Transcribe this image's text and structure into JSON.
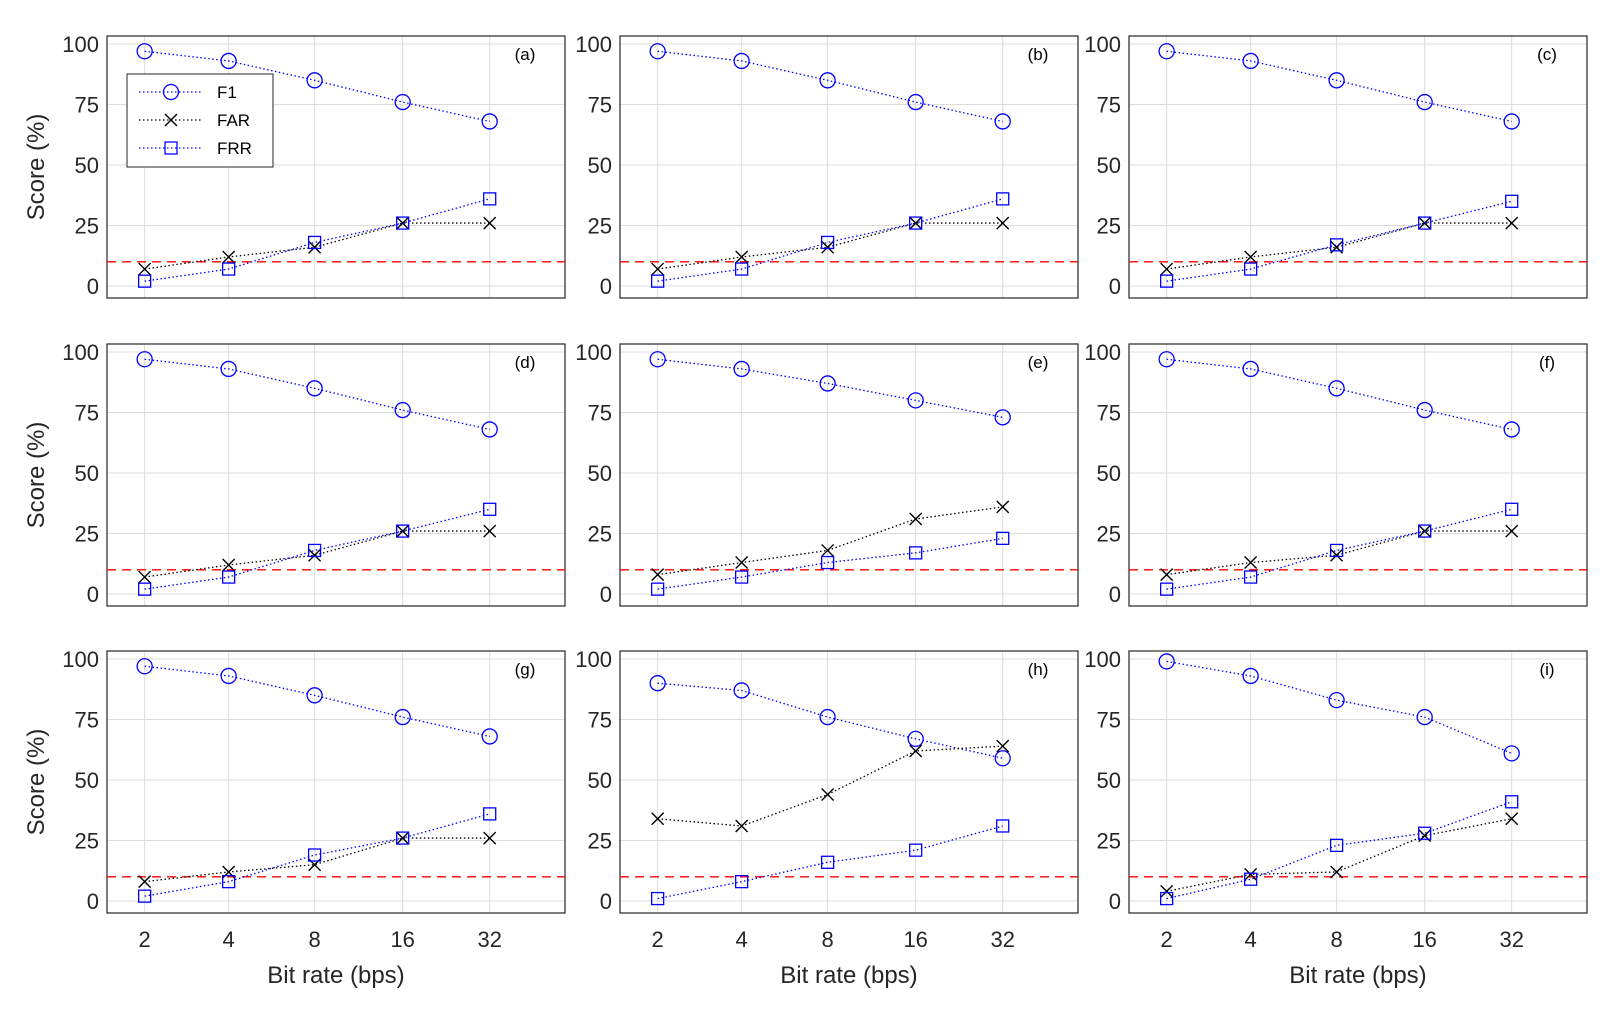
{
  "chart_data": [
    {
      "panel_label": "(a)",
      "type": "line",
      "categories": [
        "2",
        "4",
        "8",
        "16",
        "32"
      ],
      "ylim": [
        0,
        100
      ],
      "yticks": [
        "0",
        "25",
        "50",
        "75",
        "100"
      ],
      "threshold": 10,
      "series": [
        {
          "name": "F1",
          "values": [
            97,
            93,
            85,
            76,
            68
          ]
        },
        {
          "name": "FAR",
          "values": [
            7,
            12,
            16,
            26,
            26
          ]
        },
        {
          "name": "FRR",
          "values": [
            2,
            7,
            18,
            26,
            36
          ]
        }
      ]
    },
    {
      "panel_label": "(b)",
      "type": "line",
      "categories": [
        "2",
        "4",
        "8",
        "16",
        "32"
      ],
      "ylim": [
        0,
        100
      ],
      "yticks": [
        "0",
        "25",
        "50",
        "75",
        "100"
      ],
      "threshold": 10,
      "series": [
        {
          "name": "F1",
          "values": [
            97,
            93,
            85,
            76,
            68
          ]
        },
        {
          "name": "FAR",
          "values": [
            7,
            12,
            16,
            26,
            26
          ]
        },
        {
          "name": "FRR",
          "values": [
            2,
            7,
            18,
            26,
            36
          ]
        }
      ]
    },
    {
      "panel_label": "(c)",
      "type": "line",
      "categories": [
        "2",
        "4",
        "8",
        "16",
        "32"
      ],
      "ylim": [
        0,
        100
      ],
      "yticks": [
        "0",
        "25",
        "50",
        "75",
        "100"
      ],
      "threshold": 10,
      "series": [
        {
          "name": "F1",
          "values": [
            97,
            93,
            85,
            76,
            68
          ]
        },
        {
          "name": "FAR",
          "values": [
            7,
            12,
            16,
            26,
            26
          ]
        },
        {
          "name": "FRR",
          "values": [
            2,
            7,
            17,
            26,
            35
          ]
        }
      ]
    },
    {
      "panel_label": "(d)",
      "type": "line",
      "categories": [
        "2",
        "4",
        "8",
        "16",
        "32"
      ],
      "ylim": [
        0,
        100
      ],
      "yticks": [
        "0",
        "25",
        "50",
        "75",
        "100"
      ],
      "threshold": 10,
      "series": [
        {
          "name": "F1",
          "values": [
            97,
            93,
            85,
            76,
            68
          ]
        },
        {
          "name": "FAR",
          "values": [
            7,
            12,
            16,
            26,
            26
          ]
        },
        {
          "name": "FRR",
          "values": [
            2,
            7,
            18,
            26,
            35
          ]
        }
      ]
    },
    {
      "panel_label": "(e)",
      "type": "line",
      "categories": [
        "2",
        "4",
        "8",
        "16",
        "32"
      ],
      "ylim": [
        0,
        100
      ],
      "yticks": [
        "0",
        "25",
        "50",
        "75",
        "100"
      ],
      "threshold": 10,
      "series": [
        {
          "name": "F1",
          "values": [
            97,
            93,
            87,
            80,
            73
          ]
        },
        {
          "name": "FAR",
          "values": [
            8,
            13,
            18,
            31,
            36
          ]
        },
        {
          "name": "FRR",
          "values": [
            2,
            7,
            13,
            17,
            23
          ]
        }
      ]
    },
    {
      "panel_label": "(f)",
      "type": "line",
      "categories": [
        "2",
        "4",
        "8",
        "16",
        "32"
      ],
      "ylim": [
        0,
        100
      ],
      "yticks": [
        "0",
        "25",
        "50",
        "75",
        "100"
      ],
      "threshold": 10,
      "series": [
        {
          "name": "F1",
          "values": [
            97,
            93,
            85,
            76,
            68
          ]
        },
        {
          "name": "FAR",
          "values": [
            8,
            13,
            16,
            26,
            26
          ]
        },
        {
          "name": "FRR",
          "values": [
            2,
            7,
            18,
            26,
            35
          ]
        }
      ]
    },
    {
      "panel_label": "(g)",
      "type": "line",
      "categories": [
        "2",
        "4",
        "8",
        "16",
        "32"
      ],
      "ylim": [
        0,
        100
      ],
      "yticks": [
        "0",
        "25",
        "50",
        "75",
        "100"
      ],
      "threshold": 10,
      "series": [
        {
          "name": "F1",
          "values": [
            97,
            93,
            85,
            76,
            68
          ]
        },
        {
          "name": "FAR",
          "values": [
            8,
            12,
            15,
            26,
            26
          ]
        },
        {
          "name": "FRR",
          "values": [
            2,
            8,
            19,
            26,
            36
          ]
        }
      ]
    },
    {
      "panel_label": "(h)",
      "type": "line",
      "categories": [
        "2",
        "4",
        "8",
        "16",
        "32"
      ],
      "ylim": [
        0,
        100
      ],
      "yticks": [
        "0",
        "25",
        "50",
        "75",
        "100"
      ],
      "threshold": 10,
      "series": [
        {
          "name": "F1",
          "values": [
            90,
            87,
            76,
            67,
            59
          ]
        },
        {
          "name": "FAR",
          "values": [
            34,
            31,
            44,
            62,
            64
          ]
        },
        {
          "name": "FRR",
          "values": [
            1,
            8,
            16,
            21,
            31
          ]
        }
      ]
    },
    {
      "panel_label": "(i)",
      "type": "line",
      "categories": [
        "2",
        "4",
        "8",
        "16",
        "32"
      ],
      "ylim": [
        0,
        100
      ],
      "yticks": [
        "0",
        "25",
        "50",
        "75",
        "100"
      ],
      "threshold": 10,
      "series": [
        {
          "name": "F1",
          "values": [
            99,
            93,
            83,
            76,
            61
          ]
        },
        {
          "name": "FAR",
          "values": [
            4,
            11,
            12,
            27,
            34
          ]
        },
        {
          "name": "FRR",
          "values": [
            1,
            9,
            23,
            28,
            41
          ]
        }
      ]
    }
  ],
  "axes": {
    "ylabel": "Score (%)",
    "xlabel": "Bit rate (bps)"
  },
  "legend": {
    "placement": "top-left of panel (a)",
    "entries": [
      "F1",
      "FAR",
      "FRR"
    ]
  },
  "style": {
    "f1_color": "#0000ff",
    "far_color": "#000000",
    "frr_color": "#0000ff",
    "threshold_color": "#ff0000",
    "grid_color": "#dcdcdc",
    "axes_color": "#262626"
  }
}
